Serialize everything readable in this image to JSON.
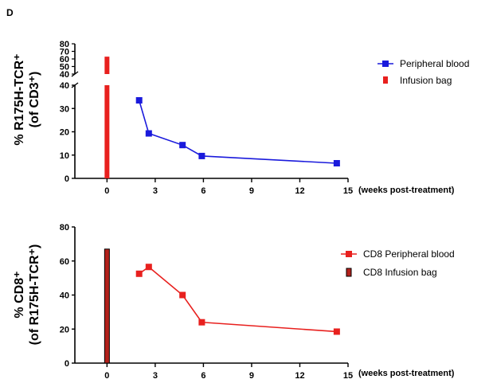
{
  "panel_label": "D",
  "chart_data": [
    {
      "type": "line",
      "title": "",
      "ylabel_line1": "% R175H-TCR⁺",
      "ylabel_line2": "(of CD3⁺)",
      "xlabel": "(weeks post-treatment)",
      "x_ticks": [
        0,
        3,
        6,
        9,
        12,
        15
      ],
      "x_tick_labels": [
        "0",
        "3",
        "6",
        "9",
        "12",
        "15"
      ],
      "xlim": [
        -2,
        15
      ],
      "y_axis_broken": true,
      "y_lower_ticks": [
        0,
        10,
        20,
        30,
        40
      ],
      "y_lower_range": [
        0,
        40
      ],
      "y_upper_ticks": [
        40,
        50,
        60,
        70,
        80
      ],
      "y_upper_range": [
        40,
        80
      ],
      "series": [
        {
          "name": "Peripheral blood",
          "type": "line",
          "color": "#1a1adc",
          "x": [
            2.0,
            2.6,
            4.7,
            5.9,
            14.3
          ],
          "y": [
            33.5,
            19.3,
            14.3,
            9.6,
            6.5
          ]
        },
        {
          "name": "Infusion bag",
          "type": "bar",
          "color": "#e8201e",
          "x": [
            0
          ],
          "y": [
            63
          ]
        }
      ],
      "legend_position": "right"
    },
    {
      "type": "line",
      "title": "",
      "ylabel_line1": "% CD8⁺",
      "ylabel_line2": "(of R175H-TCR⁺)",
      "xlabel": "(weeks post-treatment)",
      "x_ticks": [
        0,
        3,
        6,
        9,
        12,
        15
      ],
      "x_tick_labels": [
        "0",
        "3",
        "6",
        "9",
        "12",
        "15"
      ],
      "xlim": [
        -2,
        15
      ],
      "ylim": [
        0,
        80
      ],
      "y_ticks": [
        0,
        20,
        40,
        60,
        80
      ],
      "series": [
        {
          "name": "CD8  Peripheral blood",
          "type": "line",
          "color": "#e8201e",
          "x": [
            2.0,
            2.6,
            4.7,
            5.9,
            14.3
          ],
          "y": [
            52.5,
            56.5,
            40,
            24,
            18.5
          ]
        },
        {
          "name": "CD8  Infusion bag",
          "type": "bar",
          "color": "#b3211b",
          "x": [
            0
          ],
          "y": [
            67
          ]
        }
      ],
      "legend_position": "right"
    }
  ]
}
